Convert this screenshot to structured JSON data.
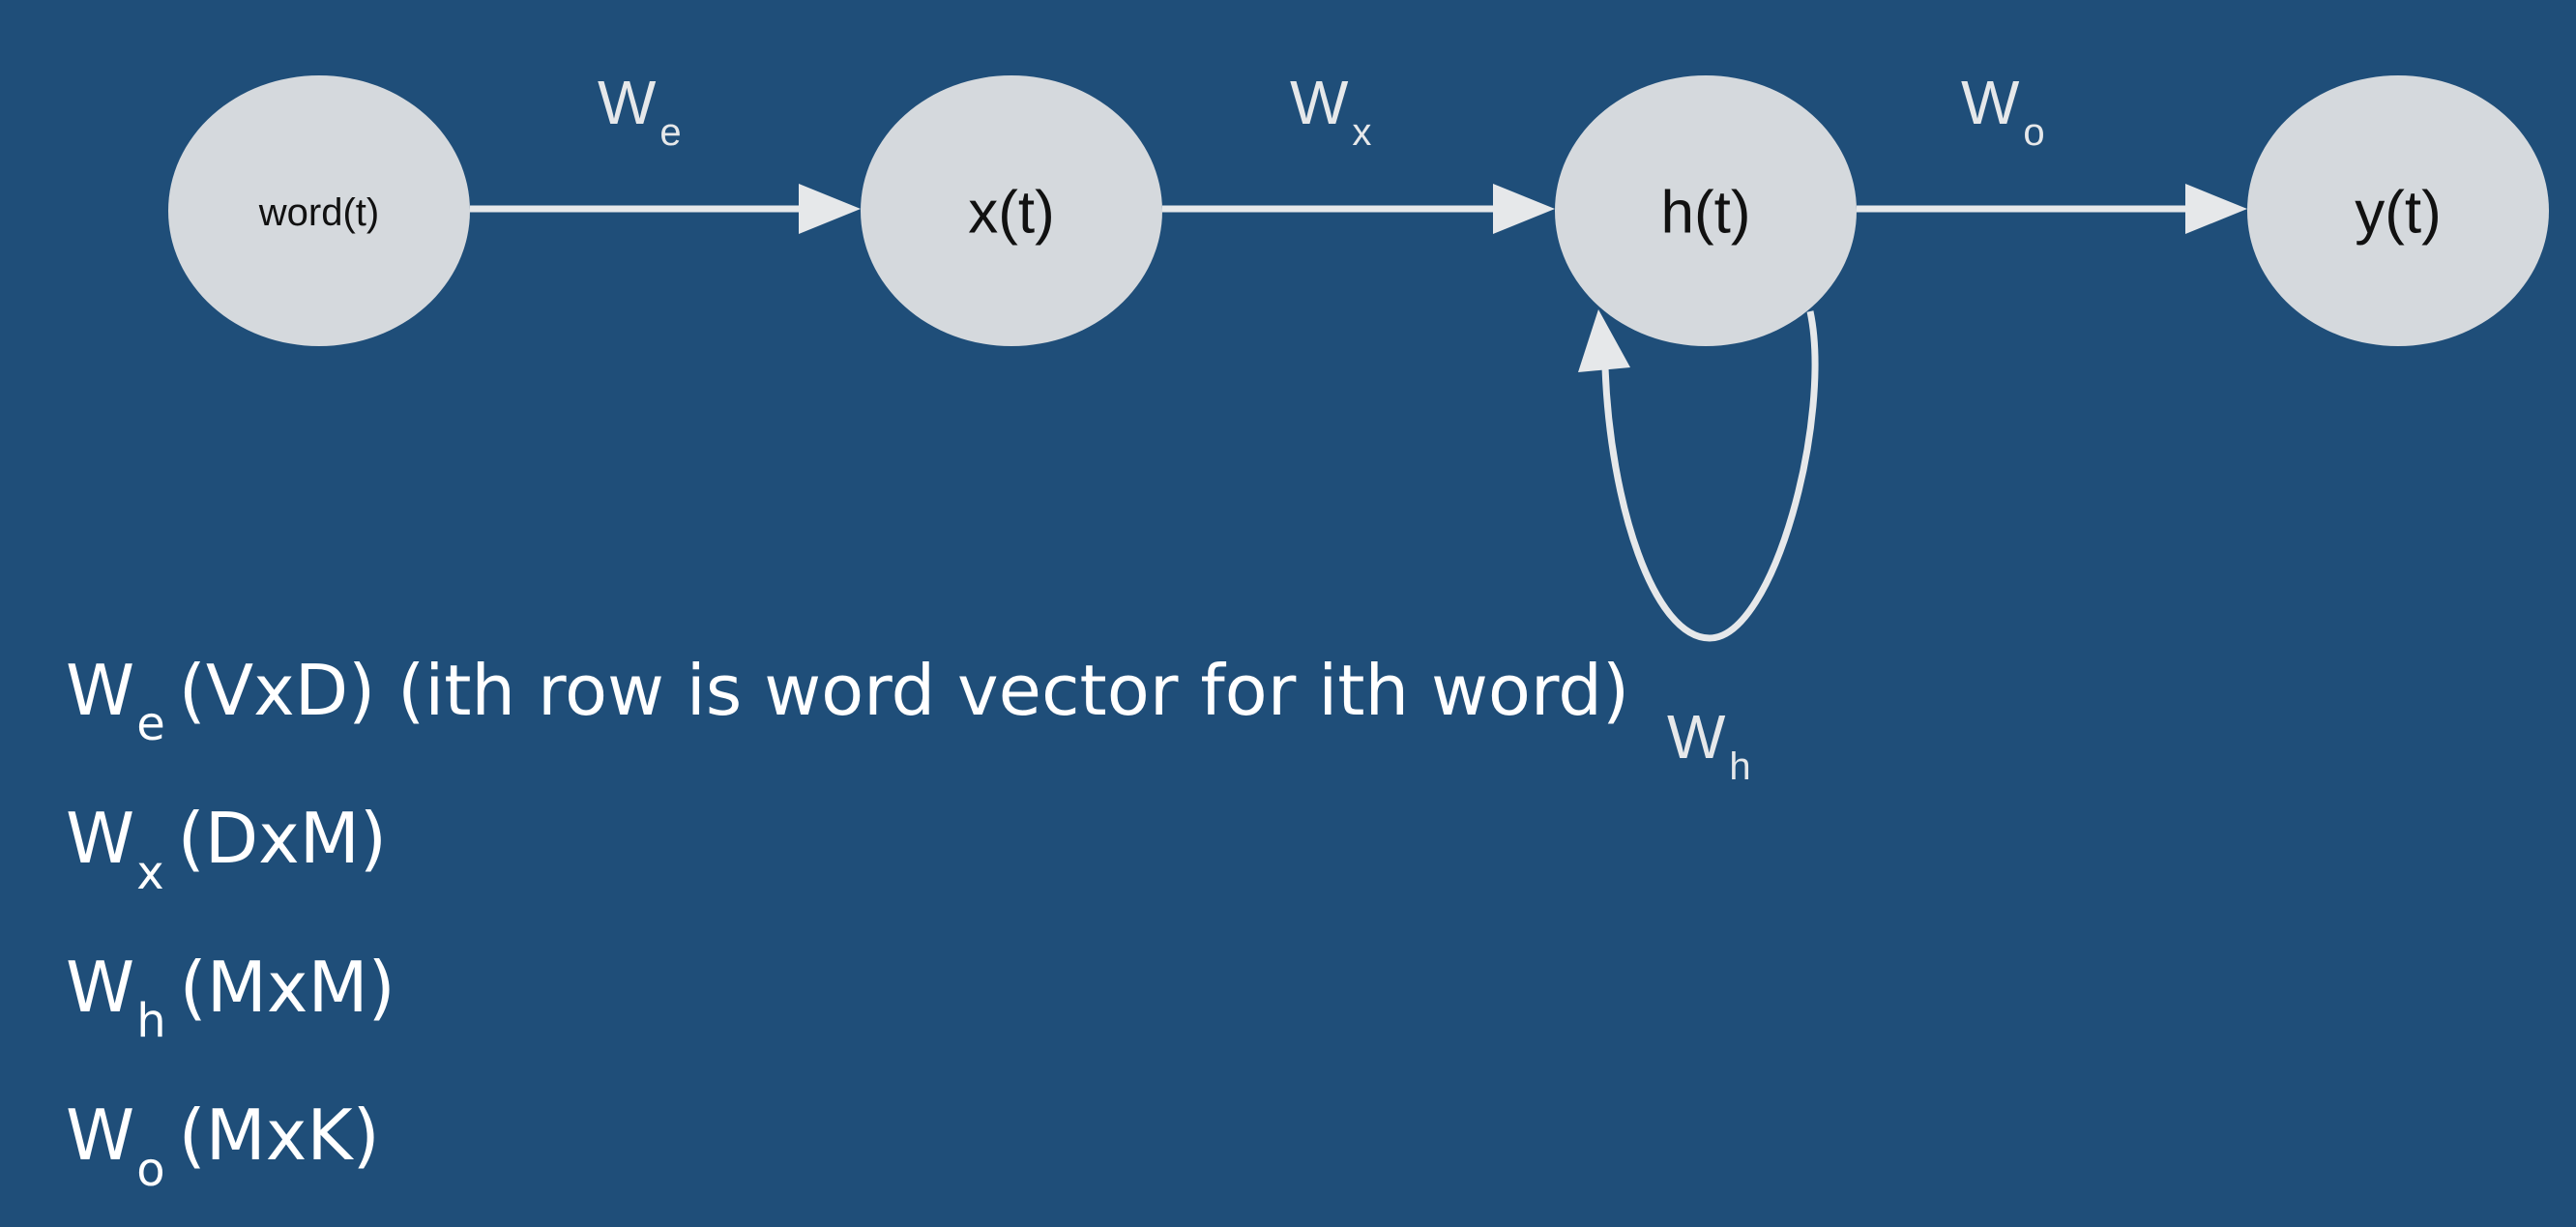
{
  "diagram": {
    "nodes": [
      {
        "id": "word",
        "label": "word(t)"
      },
      {
        "id": "x",
        "label": "x(t)"
      },
      {
        "id": "h",
        "label": "h(t)"
      },
      {
        "id": "y",
        "label": "y(t)"
      }
    ],
    "edges": [
      {
        "from": "word",
        "to": "x",
        "label_main": "W",
        "label_sub": "e"
      },
      {
        "from": "x",
        "to": "h",
        "label_main": "W",
        "label_sub": "x"
      },
      {
        "from": "h",
        "to": "y",
        "label_main": "W",
        "label_sub": "o"
      },
      {
        "from": "h",
        "to": "h",
        "label_main": "W",
        "label_sub": "h"
      }
    ]
  },
  "legend": [
    {
      "main": "W",
      "sub": "e",
      "text": "(VxD) (ith row is word vector for ith word)"
    },
    {
      "main": "W",
      "sub": "x",
      "text": "(DxM)"
    },
    {
      "main": "W",
      "sub": "h",
      "text": "(MxM)"
    },
    {
      "main": "W",
      "sub": "o",
      "text": "(MxK)"
    }
  ],
  "colors": {
    "background": "#1f4e79",
    "node_fill": "#d5d9dd",
    "edge": "#e6e8ea",
    "text": "#ffffff"
  }
}
